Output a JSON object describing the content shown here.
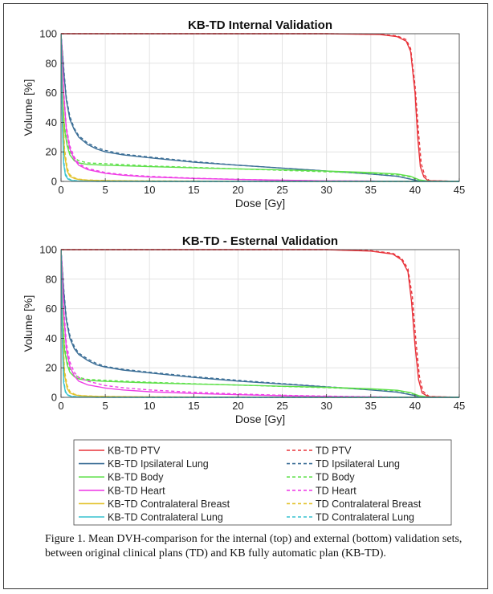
{
  "caption": "Figure 1. Mean DVH-comparison  for the internal  (top) and external (bottom) validation sets, between original  clinical plans (TD) and KB fully automatic plan (KB-TD).",
  "legend": [
    {
      "label": "KB-TD PTV",
      "color": "#e8333a",
      "style": "solid"
    },
    {
      "label": "KB-TD Ipsilateral Lung",
      "color": "#3b6e96",
      "style": "solid"
    },
    {
      "label": "KB-TD Body",
      "color": "#5ee04a",
      "style": "solid"
    },
    {
      "label": "KB-TD Heart",
      "color": "#ef3fe6",
      "style": "solid"
    },
    {
      "label": "KB-TD Contralateral Breast",
      "color": "#e3c22a",
      "style": "solid"
    },
    {
      "label": "KB-TD Contralateral Lung",
      "color": "#36c2cf",
      "style": "solid"
    },
    {
      "label": "TD PTV",
      "color": "#e8333a",
      "style": "dashed"
    },
    {
      "label": "TD Ipsilateral Lung",
      "color": "#3b6e96",
      "style": "dashed"
    },
    {
      "label": "TD Body",
      "color": "#5ee04a",
      "style": "dashed"
    },
    {
      "label": "TD Heart",
      "color": "#ef3fe6",
      "style": "dashed"
    },
    {
      "label": "TD Contralateral Breast",
      "color": "#e3c22a",
      "style": "dashed"
    },
    {
      "label": "TD Contralateral Lung",
      "color": "#36c2cf",
      "style": "dashed"
    }
  ],
  "chart_data": [
    {
      "type": "line",
      "title": "KB-TD Internal Validation",
      "xlabel": "Dose [Gy]",
      "ylabel": "Volume [%]",
      "xlim": [
        0,
        45
      ],
      "ylim": [
        0,
        100
      ],
      "xticks": [
        0,
        5,
        10,
        15,
        20,
        25,
        30,
        35,
        40,
        45
      ],
      "yticks": [
        0,
        20,
        40,
        60,
        80,
        100
      ],
      "grid": true,
      "series": [
        {
          "name": "KB-TD PTV",
          "color": "#e8333a",
          "style": "solid",
          "x": [
            0,
            30,
            36,
            38,
            39,
            39.5,
            40,
            40.3,
            40.6,
            41,
            41.5,
            45
          ],
          "y": [
            100,
            100,
            99.5,
            98,
            95,
            88,
            60,
            30,
            10,
            3,
            0.5,
            0
          ]
        },
        {
          "name": "TD PTV",
          "color": "#e8333a",
          "style": "dashed",
          "x": [
            0,
            30,
            36,
            38,
            39,
            39.5,
            40,
            40.4,
            40.7,
            41.1,
            41.6,
            45
          ],
          "y": [
            100,
            100,
            99.6,
            98.5,
            96,
            90,
            65,
            33,
            12,
            4,
            0.6,
            0
          ]
        },
        {
          "name": "KB-TD Ipsilateral Lung",
          "color": "#3b6e96",
          "style": "solid",
          "x": [
            0,
            0.3,
            0.6,
            1,
            1.5,
            2,
            3,
            4,
            5,
            7,
            10,
            15,
            20,
            25,
            30,
            35,
            38,
            39.5,
            40.5,
            45
          ],
          "y": [
            100,
            75,
            55,
            42,
            35,
            30,
            25,
            22,
            20,
            18,
            16,
            13,
            11,
            9,
            7,
            5,
            3.5,
            1.5,
            0.2,
            0
          ]
        },
        {
          "name": "TD Ipsilateral Lung",
          "color": "#3b6e96",
          "style": "dashed",
          "x": [
            0,
            0.3,
            0.6,
            1,
            1.5,
            2,
            3,
            4,
            5,
            7,
            10,
            15,
            20,
            25,
            30,
            35,
            38,
            39.5,
            40.5,
            45
          ],
          "y": [
            100,
            77,
            57,
            44,
            36,
            31,
            26,
            23,
            21,
            18.5,
            16.5,
            13.5,
            11,
            9,
            7,
            5,
            3.5,
            1.5,
            0.2,
            0
          ]
        },
        {
          "name": "KB-TD Body",
          "color": "#5ee04a",
          "style": "solid",
          "x": [
            0,
            0.2,
            0.4,
            0.7,
            1,
            1.5,
            2,
            3,
            5,
            10,
            15,
            20,
            25,
            30,
            35,
            38,
            39.5,
            40.5,
            41.5,
            45
          ],
          "y": [
            100,
            55,
            35,
            24,
            18,
            14,
            12.5,
            11.5,
            11,
            10,
            9.2,
            8.5,
            7.8,
            7,
            6,
            5,
            3.5,
            1,
            0.2,
            0
          ]
        },
        {
          "name": "TD Body",
          "color": "#5ee04a",
          "style": "dashed",
          "x": [
            0,
            0.2,
            0.4,
            0.7,
            1,
            1.5,
            2,
            3,
            5,
            10,
            15,
            20,
            25,
            30,
            35,
            38,
            39.5,
            40.5,
            41.5,
            45
          ],
          "y": [
            100,
            57,
            37,
            26,
            20,
            16,
            14,
            12.5,
            12,
            10.5,
            9.5,
            8.5,
            7.5,
            6.5,
            5.5,
            4.5,
            3,
            0.8,
            0.2,
            0
          ]
        },
        {
          "name": "KB-TD Heart",
          "color": "#ef3fe6",
          "style": "solid",
          "x": [
            0,
            0.3,
            0.6,
            1,
            1.5,
            2,
            3,
            5,
            7,
            10,
            15,
            20,
            25,
            30,
            35,
            40,
            45
          ],
          "y": [
            100,
            60,
            35,
            22,
            15,
            11,
            8,
            5.5,
            4.2,
            3,
            2,
            1.3,
            0.8,
            0.4,
            0.2,
            0,
            0
          ]
        },
        {
          "name": "TD Heart",
          "color": "#ef3fe6",
          "style": "dashed",
          "x": [
            0,
            0.3,
            0.6,
            1,
            1.5,
            2,
            3,
            5,
            7,
            10,
            15,
            20,
            25,
            30,
            35,
            40,
            45
          ],
          "y": [
            100,
            62,
            37,
            24,
            16.5,
            12,
            8.8,
            6,
            4.6,
            3.4,
            2.2,
            1.4,
            0.8,
            0.4,
            0.2,
            0,
            0
          ]
        },
        {
          "name": "KB-TD Contralateral Breast",
          "color": "#e3c22a",
          "style": "solid",
          "x": [
            0,
            0.2,
            0.4,
            0.7,
            1,
            1.5,
            2,
            3,
            5,
            10,
            20,
            30,
            45
          ],
          "y": [
            100,
            45,
            18,
            7,
            3.5,
            2,
            1.3,
            0.8,
            0.5,
            0.2,
            0.1,
            0,
            0
          ]
        },
        {
          "name": "TD Contralateral Breast",
          "color": "#e3c22a",
          "style": "dashed",
          "x": [
            0,
            0.2,
            0.4,
            0.7,
            1,
            1.5,
            2,
            3,
            5,
            10,
            20,
            30,
            45
          ],
          "y": [
            100,
            50,
            22,
            9,
            4.5,
            2.5,
            1.5,
            0.9,
            0.6,
            0.3,
            0.1,
            0,
            0
          ]
        },
        {
          "name": "KB-TD Contralateral Lung",
          "color": "#36c2cf",
          "style": "solid",
          "x": [
            0,
            0.15,
            0.3,
            0.5,
            0.8,
            1.2,
            2,
            4,
            10,
            45
          ],
          "y": [
            100,
            40,
            12,
            4,
            1.5,
            0.6,
            0.2,
            0.05,
            0,
            0
          ]
        },
        {
          "name": "TD Contralateral Lung",
          "color": "#36c2cf",
          "style": "dashed",
          "x": [
            0,
            0.15,
            0.3,
            0.5,
            0.8,
            1.2,
            2,
            4,
            10,
            45
          ],
          "y": [
            100,
            42,
            14,
            5,
            2,
            0.8,
            0.3,
            0.08,
            0,
            0
          ]
        }
      ]
    },
    {
      "type": "line",
      "title": "KB-TD -  Esternal Validation",
      "xlabel": "Dose [Gy]",
      "ylabel": "Volume [%]",
      "xlim": [
        0,
        45
      ],
      "ylim": [
        0,
        100
      ],
      "xticks": [
        0,
        5,
        10,
        15,
        20,
        25,
        30,
        35,
        40,
        45
      ],
      "yticks": [
        0,
        20,
        40,
        60,
        80,
        100
      ],
      "grid": true,
      "series": [
        {
          "name": "KB-TD PTV",
          "color": "#e8333a",
          "style": "solid",
          "x": [
            0,
            30,
            35,
            37.5,
            38.5,
            39.2,
            39.6,
            40,
            40.4,
            40.8,
            41.5,
            45
          ],
          "y": [
            100,
            100,
            99,
            97,
            93,
            85,
            65,
            35,
            12,
            3,
            0.5,
            0
          ]
        },
        {
          "name": "TD PTV",
          "color": "#e8333a",
          "style": "dashed",
          "x": [
            0,
            30,
            35,
            37.5,
            38.5,
            39.2,
            39.7,
            40.1,
            40.5,
            40.9,
            41.6,
            45
          ],
          "y": [
            100,
            100,
            99.3,
            97.5,
            94,
            87,
            68,
            38,
            14,
            4,
            0.6,
            0
          ]
        },
        {
          "name": "KB-TD Ipsilateral Lung",
          "color": "#3b6e96",
          "style": "solid",
          "x": [
            0,
            0.3,
            0.6,
            1,
            1.5,
            2,
            3,
            4,
            5,
            7,
            10,
            15,
            20,
            25,
            30,
            35,
            38,
            40,
            41,
            45
          ],
          "y": [
            100,
            72,
            52,
            40,
            33,
            29,
            25,
            22,
            20.5,
            18.5,
            16.5,
            13.5,
            11,
            9,
            7,
            5,
            3.5,
            1.2,
            0.2,
            0
          ]
        },
        {
          "name": "TD Ipsilateral Lung",
          "color": "#3b6e96",
          "style": "dashed",
          "x": [
            0,
            0.3,
            0.6,
            1,
            1.5,
            2,
            3,
            4,
            5,
            7,
            10,
            15,
            20,
            25,
            30,
            35,
            38,
            40,
            41,
            45
          ],
          "y": [
            100,
            74,
            54,
            42,
            34.5,
            30,
            26,
            23,
            21,
            19,
            17,
            14,
            11.5,
            9.3,
            7.2,
            5.2,
            3.6,
            1.3,
            0.2,
            0
          ]
        },
        {
          "name": "KB-TD Body",
          "color": "#5ee04a",
          "style": "solid",
          "x": [
            0,
            0.2,
            0.4,
            0.7,
            1,
            1.5,
            2,
            3,
            5,
            10,
            15,
            20,
            25,
            30,
            35,
            38,
            39.5,
            40.5,
            41.5,
            45
          ],
          "y": [
            100,
            52,
            32,
            22,
            17,
            14,
            12.5,
            11.5,
            10.8,
            9.8,
            9,
            8.3,
            7.5,
            6.8,
            5.8,
            4.8,
            3.2,
            1,
            0.2,
            0
          ]
        },
        {
          "name": "TD Body",
          "color": "#5ee04a",
          "style": "dashed",
          "x": [
            0,
            0.2,
            0.4,
            0.7,
            1,
            1.5,
            2,
            3,
            5,
            10,
            15,
            20,
            25,
            30,
            35,
            38,
            39.5,
            40.5,
            41.5,
            45
          ],
          "y": [
            100,
            55,
            35,
            24,
            19,
            15.5,
            13.5,
            12.2,
            11.5,
            10.2,
            9.2,
            8.3,
            7.4,
            6.5,
            5.5,
            4.5,
            3,
            0.8,
            0.2,
            0
          ]
        },
        {
          "name": "KB-TD Heart",
          "color": "#ef3fe6",
          "style": "solid",
          "x": [
            0,
            0.3,
            0.6,
            1,
            1.5,
            2,
            3,
            5,
            7,
            10,
            15,
            20,
            25,
            30,
            35,
            40,
            45
          ],
          "y": [
            100,
            58,
            33,
            21,
            14.5,
            11,
            8.5,
            6.3,
            5,
            3.8,
            2.6,
            1.8,
            1.1,
            0.6,
            0.3,
            0,
            0
          ]
        },
        {
          "name": "TD Heart",
          "color": "#ef3fe6",
          "style": "dashed",
          "x": [
            0,
            0.3,
            0.6,
            1,
            1.5,
            2,
            3,
            5,
            7,
            10,
            15,
            20,
            25,
            30,
            35,
            40,
            45
          ],
          "y": [
            100,
            62,
            37,
            24,
            17,
            13.5,
            11,
            8,
            6.5,
            5,
            3.4,
            2.3,
            1.4,
            0.8,
            0.4,
            0,
            0
          ]
        },
        {
          "name": "KB-TD Contralateral Breast",
          "color": "#e3c22a",
          "style": "solid",
          "x": [
            0,
            0.2,
            0.4,
            0.7,
            1,
            1.5,
            2,
            3,
            5,
            10,
            20,
            30,
            45
          ],
          "y": [
            100,
            40,
            15,
            6,
            3,
            1.8,
            1.2,
            0.8,
            0.5,
            0.3,
            0.1,
            0,
            0
          ]
        },
        {
          "name": "TD Contralateral Breast",
          "color": "#e3c22a",
          "style": "dashed",
          "x": [
            0,
            0.2,
            0.4,
            0.7,
            1,
            1.5,
            2,
            3,
            5,
            10,
            20,
            30,
            45
          ],
          "y": [
            100,
            44,
            18,
            8,
            4,
            2.2,
            1.4,
            0.9,
            0.6,
            0.3,
            0.1,
            0,
            0
          ]
        },
        {
          "name": "KB-TD Contralateral Lung",
          "color": "#36c2cf",
          "style": "solid",
          "x": [
            0,
            0.15,
            0.3,
            0.5,
            0.8,
            1.2,
            2,
            4,
            10,
            45
          ],
          "y": [
            100,
            38,
            10,
            3.5,
            1.3,
            0.5,
            0.2,
            0.05,
            0,
            0
          ]
        },
        {
          "name": "TD Contralateral Lung",
          "color": "#36c2cf",
          "style": "dashed",
          "x": [
            0,
            0.15,
            0.3,
            0.5,
            0.8,
            1.2,
            2,
            4,
            10,
            45
          ],
          "y": [
            100,
            40,
            12,
            4,
            1.6,
            0.7,
            0.25,
            0.06,
            0,
            0
          ]
        }
      ]
    }
  ]
}
